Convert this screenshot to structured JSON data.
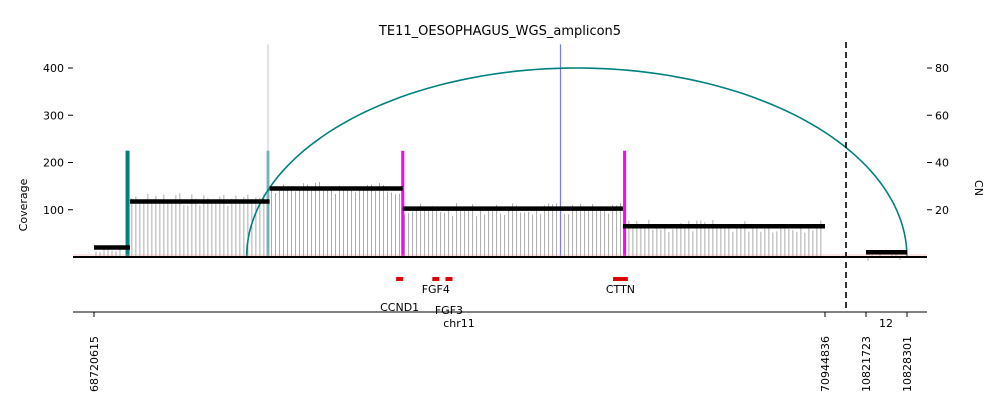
{
  "chart_data": {
    "type": "line",
    "title": "TE11_OESOPHAGUS_WGS_amplicon5",
    "ylabel_left": "Coverage",
    "ylabel_right": "CN",
    "yticks_left": [
      100,
      200,
      300,
      400
    ],
    "yticks_right": [
      20,
      40,
      60,
      80
    ],
    "ylim_left": [
      0,
      450
    ],
    "ylim_right": [
      0,
      90
    ],
    "xlabel": "chr11",
    "xlabel_second": "12",
    "xticks": [
      {
        "label": "68720615",
        "chrom": "chr11",
        "pos": 68720615
      },
      {
        "label": "70944836",
        "chrom": "chr11",
        "pos": 70944836
      },
      {
        "label": "10821723",
        "chrom": "chr12",
        "pos": 10821723
      },
      {
        "label": "10828301",
        "chrom": "chr12",
        "pos": 10828301
      }
    ],
    "copy_number_segments": [
      {
        "chrom": "chr11",
        "start": 68720615,
        "end": 68830000,
        "cn": 4.0
      },
      {
        "chrom": "chr11",
        "start": 68830000,
        "end": 69255000,
        "cn": 23.5
      },
      {
        "chrom": "chr11",
        "start": 69255000,
        "end": 69660000,
        "cn": 29.0
      },
      {
        "chrom": "chr11",
        "start": 69660000,
        "end": 70330000,
        "cn": 20.5
      },
      {
        "chrom": "chr11",
        "start": 70330000,
        "end": 70944836,
        "cn": 13.0
      },
      {
        "chrom": "chr12",
        "start": 10821723,
        "end": 10828301,
        "cn": 2.0
      }
    ],
    "coverage_bins": [
      {
        "chrom": "chr11",
        "start": 68720615,
        "end": 68830000,
        "coverage": 12
      },
      {
        "chrom": "chr11",
        "start": 68830000,
        "end": 69255000,
        "coverage": 122
      },
      {
        "chrom": "chr11",
        "start": 69255000,
        "end": 69660000,
        "coverage": 146
      },
      {
        "chrom": "chr11",
        "start": 69660000,
        "end": 70330000,
        "coverage": 100
      },
      {
        "chrom": "chr11",
        "start": 70330000,
        "end": 70944836,
        "coverage": 65
      },
      {
        "chrom": "chr12",
        "start": 10821723,
        "end": 10828301,
        "coverage": 5
      }
    ],
    "breakpoints": [
      {
        "chrom": "chr11",
        "pos": 68825000,
        "color": "#008080",
        "cn": 45
      },
      {
        "chrom": "chr11",
        "pos": 69250000,
        "color": "#008080",
        "cn": 45
      },
      {
        "chrom": "chr11",
        "pos": 69250000,
        "color": "#ccccdd",
        "cn": 90
      },
      {
        "chrom": "chr11",
        "pos": 69660000,
        "color": "#ff00ff",
        "cn": 45
      },
      {
        "chrom": "chr11",
        "pos": 70140000,
        "color": "#7777ff",
        "cn": 90
      },
      {
        "chrom": "chr11",
        "pos": 70335000,
        "color": "#ff00ff",
        "cn": 45
      }
    ],
    "arcs": [
      {
        "from": {
          "chrom": "chr11",
          "pos": 69185000
        },
        "to": {
          "chrom": "chr12",
          "pos": 10828301
        },
        "color": "#008080",
        "peak_cn": 80
      }
    ],
    "genes": [
      {
        "name": "CCND1",
        "chrom": "chr11",
        "start": 69640000,
        "end": 69660000
      },
      {
        "name": "FGF4",
        "chrom": "chr11",
        "start": 69750000,
        "end": 69765000
      },
      {
        "name": "FGF3",
        "chrom": "chr11",
        "start": 69790000,
        "end": 69810000
      },
      {
        "name": "CTTN",
        "chrom": "chr11",
        "start": 70300000,
        "end": 70345000
      }
    ],
    "gene_color": "#e00000",
    "chrom_separator": {
      "style": "dashed",
      "color": "#000000"
    },
    "colors": {
      "cn_segment": "#000000",
      "coverage": "#888888",
      "arc": "#008080"
    },
    "grid": false
  }
}
